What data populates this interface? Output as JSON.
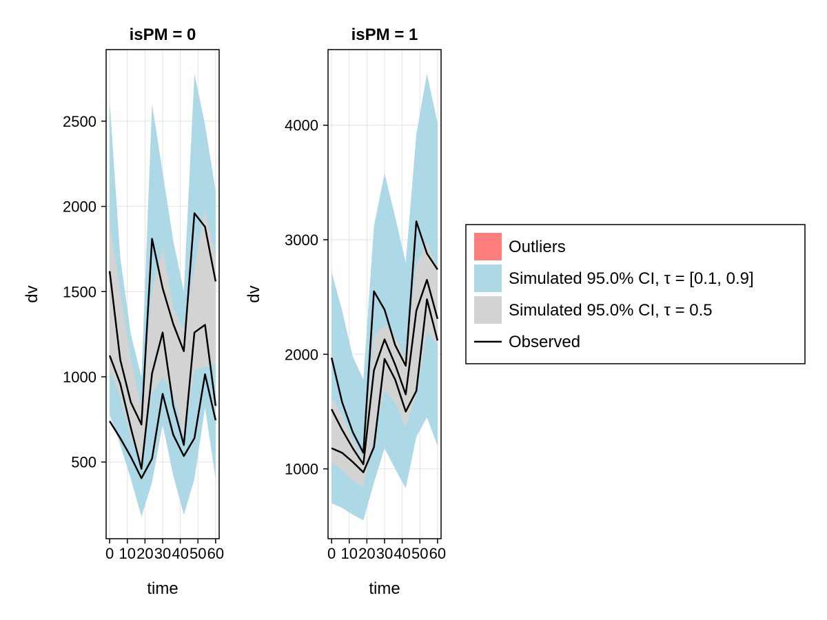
{
  "chart_data": [
    {
      "type": "area",
      "title": "isPM = 0",
      "xlabel": "time",
      "ylabel": "dv",
      "xlim": [
        -2,
        62
      ],
      "ylim": [
        50,
        2920
      ],
      "xticks": [
        0,
        10,
        20,
        30,
        40,
        50,
        60
      ],
      "xtick_labels": [
        "0",
        "10",
        "20",
        "30",
        "40",
        "50",
        "60"
      ],
      "yticks": [
        500,
        1000,
        1500,
        2000,
        2500
      ],
      "ytick_labels": [
        "500",
        "1000",
        "1500",
        "2000",
        "2500"
      ],
      "grid": true,
      "x": [
        0,
        6,
        12,
        18,
        24,
        30,
        36,
        42,
        48,
        54,
        60
      ],
      "bands": [
        {
          "name": "Simulated 95.0% CI, τ = [0.1, 0.9]",
          "color": "#add8e6",
          "lower": [
            780,
            600,
            400,
            180,
            380,
            720,
            420,
            190,
            400,
            820,
            400
          ],
          "upper": [
            2620,
            1700,
            1250,
            1000,
            2600,
            2200,
            1800,
            1500,
            2780,
            2480,
            2090
          ]
        },
        {
          "name": "Simulated 95.0% CI, τ = 0.5",
          "color": "#d3d3d3",
          "lower": [
            1050,
            880,
            650,
            480,
            900,
            1000,
            900,
            640,
            1040,
            1060,
            1080
          ],
          "upper": [
            1900,
            1500,
            1100,
            820,
            1500,
            1760,
            1400,
            1280,
            1640,
            1980,
            1700
          ]
        }
      ],
      "series": [
        {
          "name": "Observed",
          "color": "#000000",
          "values": [
            1620,
            1100,
            850,
            720,
            1810,
            1520,
            1310,
            1150,
            1960,
            1880,
            1560
          ]
        },
        {
          "name": "Observed",
          "color": "#000000",
          "values": [
            1125,
            960,
            700,
            460,
            1020,
            1260,
            830,
            600,
            1260,
            1305,
            830
          ]
        },
        {
          "name": "Observed",
          "color": "#000000",
          "values": [
            740,
            640,
            530,
            405,
            520,
            900,
            660,
            535,
            640,
            1015,
            745
          ]
        }
      ]
    },
    {
      "type": "area",
      "title": "isPM = 1",
      "xlabel": "time",
      "ylabel": "dv",
      "xlim": [
        -2,
        62
      ],
      "ylim": [
        390,
        4660
      ],
      "xticks": [
        0,
        10,
        20,
        30,
        40,
        50,
        60
      ],
      "xtick_labels": [
        "0",
        "10",
        "20",
        "30",
        "40",
        "50",
        "60"
      ],
      "yticks": [
        1000,
        2000,
        3000,
        4000
      ],
      "ytick_labels": [
        "1000",
        "2000",
        "3000",
        "4000"
      ],
      "grid": true,
      "x": [
        0,
        6,
        12,
        18,
        24,
        30,
        36,
        42,
        48,
        54,
        60
      ],
      "bands": [
        {
          "name": "Simulated 95.0% CI, τ = [0.1, 0.9]",
          "color": "#add8e6",
          "lower": [
            700,
            660,
            600,
            550,
            880,
            1180,
            1000,
            830,
            1280,
            1450,
            1200
          ],
          "upper": [
            2720,
            2380,
            1980,
            1780,
            3120,
            3580,
            3200,
            2800,
            3920,
            4450,
            4020
          ]
        },
        {
          "name": "Simulated 95.0% CI, τ = 0.5",
          "color": "#d3d3d3",
          "lower": [
            1060,
            990,
            900,
            840,
            1300,
            1680,
            1580,
            1360,
            1650,
            2200,
            2080
          ]
        },
        {
          "name": "Simulated 95.0% CI, τ = 0.5",
          "color": "#d3d3d3",
          "upper": [
            1620,
            1470,
            1240,
            1100,
            2160,
            2260,
            2150,
            1960,
            2780,
            2980,
            2740
          ]
        }
      ],
      "series": [
        {
          "name": "Observed",
          "color": "#000000",
          "values": [
            1970,
            1580,
            1320,
            1140,
            2550,
            2390,
            2080,
            1900,
            3160,
            2880,
            2740
          ]
        },
        {
          "name": "Observed",
          "color": "#000000",
          "values": [
            1520,
            1340,
            1180,
            1040,
            1860,
            2130,
            1910,
            1650,
            2380,
            2650,
            2310
          ]
        },
        {
          "name": "Observed",
          "color": "#000000",
          "values": [
            1180,
            1140,
            1060,
            970,
            1190,
            1960,
            1780,
            1500,
            1680,
            2480,
            2120
          ]
        }
      ]
    }
  ],
  "legend": {
    "placement": "right",
    "items": [
      {
        "label": "Outliers",
        "kind": "patch",
        "color": "#ff7f7f"
      },
      {
        "label": "Simulated 95.0% CI, τ = [0.1, 0.9]",
        "kind": "patch",
        "color": "#add8e6"
      },
      {
        "label": "Simulated 95.0% CI, τ = 0.5",
        "kind": "patch",
        "color": "#d3d3d3"
      },
      {
        "label": "Observed",
        "kind": "line",
        "color": "#000000"
      }
    ]
  }
}
